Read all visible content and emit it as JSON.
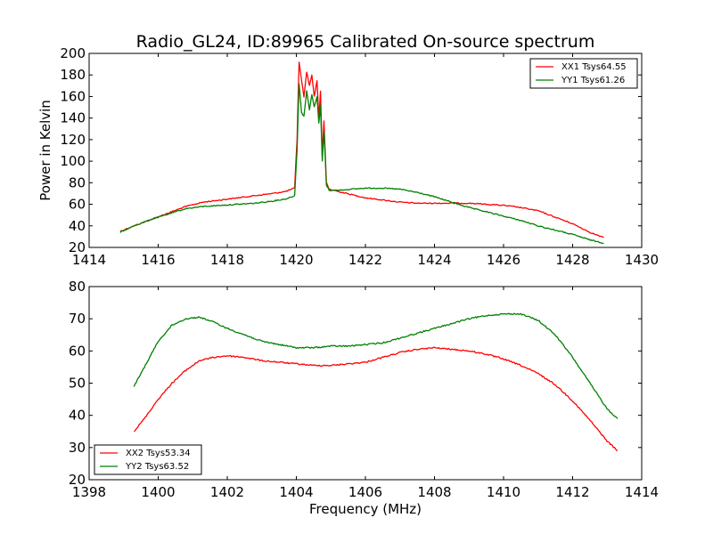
{
  "chart_data": [
    {
      "type": "line",
      "title": "Radio_GL24, ID:89965 Calibrated On-source spectrum",
      "xlabel": "",
      "ylabel": "Power in Kelvin",
      "xlim": [
        1414,
        1430
      ],
      "ylim": [
        20,
        200
      ],
      "xticks": [
        1414,
        1416,
        1418,
        1420,
        1422,
        1424,
        1426,
        1428,
        1430
      ],
      "yticks": [
        20,
        40,
        60,
        80,
        100,
        120,
        140,
        160,
        180,
        200
      ],
      "grid": false,
      "legend_position": "top-right",
      "series": [
        {
          "name": "XX1 Tsys64.55",
          "color": "#ff0000",
          "x": [
            1414.9,
            1415.3,
            1415.8,
            1416.3,
            1416.8,
            1417.3,
            1417.8,
            1418.3,
            1418.8,
            1419.3,
            1419.7,
            1419.95,
            1420.02,
            1420.08,
            1420.15,
            1420.22,
            1420.3,
            1420.38,
            1420.45,
            1420.52,
            1420.6,
            1420.65,
            1420.7,
            1420.75,
            1420.8,
            1420.87,
            1420.95,
            1421.2,
            1421.6,
            1422.0,
            1422.5,
            1423.0,
            1423.5,
            1424.0,
            1424.5,
            1425.0,
            1425.5,
            1426.0,
            1426.5,
            1427.0,
            1427.5,
            1428.0,
            1428.5,
            1428.9
          ],
          "y": [
            35,
            40,
            46,
            52,
            58,
            62,
            64,
            66,
            68,
            70,
            72,
            75,
            120,
            192,
            175,
            160,
            183,
            170,
            180,
            160,
            175,
            140,
            165,
            105,
            137,
            80,
            74,
            72,
            69,
            66,
            64,
            62,
            61,
            61,
            61,
            61,
            60,
            59,
            57,
            54,
            48,
            42,
            34,
            29
          ]
        },
        {
          "name": "YY1 Tsys61.26",
          "color": "#008000",
          "x": [
            1414.9,
            1415.3,
            1415.8,
            1416.3,
            1416.8,
            1417.3,
            1417.8,
            1418.3,
            1418.8,
            1419.3,
            1419.7,
            1419.95,
            1420.02,
            1420.08,
            1420.15,
            1420.22,
            1420.3,
            1420.38,
            1420.45,
            1420.52,
            1420.6,
            1420.65,
            1420.7,
            1420.75,
            1420.8,
            1420.87,
            1420.95,
            1421.2,
            1421.6,
            1422.0,
            1422.5,
            1423.0,
            1423.5,
            1424.0,
            1424.5,
            1425.0,
            1425.5,
            1426.0,
            1426.5,
            1427.0,
            1427.5,
            1428.0,
            1428.5,
            1428.9
          ],
          "y": [
            34,
            40,
            46,
            51,
            56,
            58,
            59,
            60,
            61,
            63,
            65,
            68,
            110,
            172,
            145,
            142,
            165,
            148,
            162,
            150,
            160,
            135,
            152,
            100,
            128,
            78,
            73,
            73,
            74,
            75,
            75,
            74,
            71,
            67,
            62,
            57,
            53,
            49,
            45,
            40,
            36,
            32,
            27,
            24
          ]
        }
      ]
    },
    {
      "type": "line",
      "title": "",
      "xlabel": "Frequency (MHz)",
      "ylabel": "",
      "xlim": [
        1398,
        1414
      ],
      "ylim": [
        20,
        80
      ],
      "xticks": [
        1398,
        1400,
        1402,
        1404,
        1406,
        1408,
        1410,
        1412,
        1414
      ],
      "yticks": [
        20,
        30,
        40,
        50,
        60,
        70,
        80
      ],
      "grid": false,
      "legend_position": "bottom-left",
      "series": [
        {
          "name": "XX2 Tsys53.34",
          "color": "#ff0000",
          "x": [
            1399.3,
            1399.6,
            1400.0,
            1400.4,
            1400.8,
            1401.2,
            1401.6,
            1402.0,
            1402.5,
            1403.0,
            1403.5,
            1404.0,
            1404.5,
            1405.0,
            1405.5,
            1406.0,
            1406.5,
            1407.0,
            1407.5,
            1408.0,
            1408.5,
            1409.0,
            1409.5,
            1410.0,
            1410.5,
            1411.0,
            1411.5,
            1412.0,
            1412.5,
            1413.0,
            1413.3
          ],
          "y": [
            35,
            39,
            45,
            50,
            54,
            57,
            58,
            58.5,
            58,
            57,
            56.5,
            56,
            55.5,
            55.5,
            56,
            56.5,
            58,
            59.5,
            60.5,
            61,
            60.5,
            60,
            59,
            57.5,
            55.5,
            53,
            49.5,
            44.5,
            38.5,
            32,
            29
          ]
        },
        {
          "name": "YY2 Tsys63.52",
          "color": "#008000",
          "x": [
            1399.3,
            1399.6,
            1400.0,
            1400.4,
            1400.8,
            1401.2,
            1401.6,
            1402.0,
            1402.5,
            1403.0,
            1403.5,
            1404.0,
            1404.5,
            1405.0,
            1405.5,
            1406.0,
            1406.5,
            1407.0,
            1407.5,
            1408.0,
            1408.5,
            1409.0,
            1409.5,
            1410.0,
            1410.5,
            1411.0,
            1411.5,
            1412.0,
            1412.5,
            1413.0,
            1413.3
          ],
          "y": [
            49,
            55,
            63,
            68,
            70,
            70.5,
            69,
            67,
            65,
            63,
            62,
            61,
            61,
            61.5,
            61.5,
            62,
            62.5,
            64,
            65.5,
            67,
            68.5,
            70,
            71,
            71.5,
            71.5,
            69.5,
            65,
            58,
            50,
            42,
            39
          ]
        }
      ]
    }
  ]
}
